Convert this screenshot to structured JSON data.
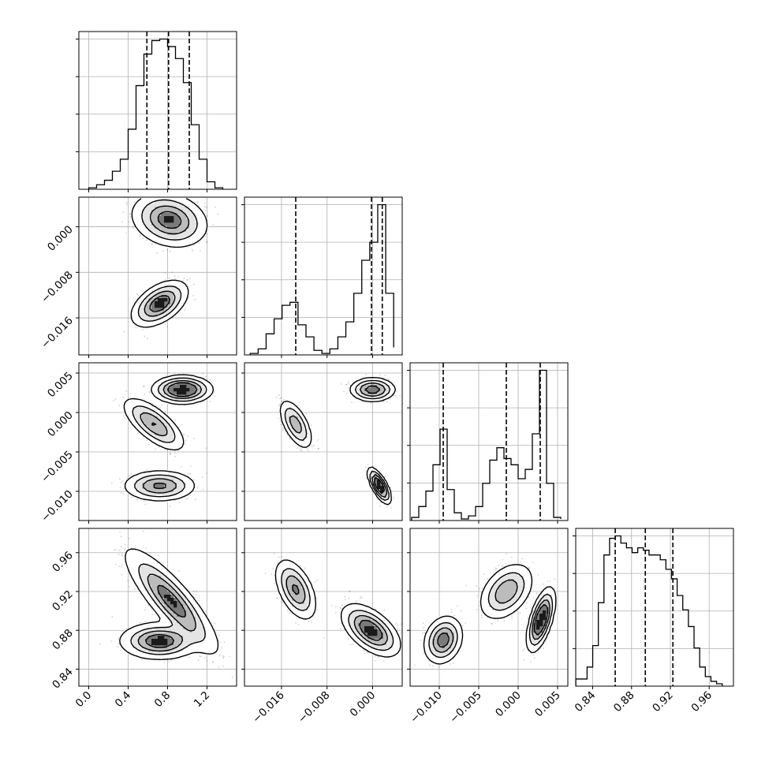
{
  "chart_data": {
    "type": "corner",
    "description_visible": false,
    "parameters": 4,
    "grid": true,
    "quantile_lines": "dashed",
    "panels": {
      "p1": {
        "xlim": [
          -0.1,
          1.5
        ],
        "ticks": [
          0.0,
          0.4,
          0.8,
          1.2
        ],
        "tick_labels": [
          "0.0",
          "0.4",
          "0.8",
          "1.2"
        ],
        "quantiles": [
          0.59,
          0.81,
          1.02
        ],
        "hist_edges": [
          0.0,
          0.08,
          0.16,
          0.24,
          0.32,
          0.4,
          0.48,
          0.56,
          0.64,
          0.72,
          0.8,
          0.88,
          0.96,
          1.04,
          1.12,
          1.2,
          1.28,
          1.36
        ],
        "hist_counts": [
          1,
          3,
          6,
          12,
          20,
          40,
          69,
          90,
          99,
          100,
          95,
          87,
          71,
          43,
          20,
          5,
          1
        ]
      },
      "p2": {
        "lim": [
          -0.0225,
          0.0052
        ],
        "ticks": [
          -0.016,
          -0.008,
          0.0
        ],
        "tick_labels": [
          "−0.016",
          "−0.008",
          "0.000"
        ],
        "quantiles": [
          -0.0135,
          -0.0002,
          0.0017
        ],
        "hist_edges": [
          -0.0215,
          -0.0201,
          -0.0187,
          -0.0173,
          -0.0159,
          -0.0145,
          -0.0131,
          -0.0117,
          -0.0103,
          -0.0089,
          -0.0075,
          -0.0061,
          -0.0047,
          -0.0033,
          -0.0019,
          -0.0005,
          0.0009,
          0.0023,
          0.0037
        ],
        "hist_counts": [
          1,
          4,
          14,
          24,
          33,
          35,
          20,
          12,
          3,
          1,
          4,
          12,
          22,
          41,
          63,
          75,
          100,
          41,
          5
        ]
      },
      "p3": {
        "lim": [
          -0.0137,
          0.0063
        ],
        "ticks": [
          -0.01,
          -0.005,
          0.0,
          0.005
        ],
        "tick_labels": [
          "−0.010",
          "−0.005",
          "0.000",
          "0.005"
        ],
        "quantiles": [
          -0.0095,
          -0.0015,
          0.0028
        ],
        "hist_edges": [
          -0.0135,
          -0.0126,
          -0.0117,
          -0.0108,
          -0.0099,
          -0.009,
          -0.0081,
          -0.0072,
          -0.0063,
          -0.0054,
          -0.0045,
          -0.0036,
          -0.0027,
          -0.0018,
          -0.0009,
          0.0,
          0.0009,
          0.0018,
          0.0027,
          0.0036,
          0.0045,
          0.0054
        ],
        "hist_counts": [
          2,
          9,
          19,
          36,
          59,
          20,
          5,
          1,
          3,
          9,
          24,
          39,
          47,
          40,
          36,
          27,
          33,
          56,
          97,
          24,
          2,
          1
        ]
      },
      "p4": {
        "lim": [
          0.8225,
          0.985
        ],
        "ticks": [
          0.84,
          0.88,
          0.92,
          0.96
        ],
        "tick_labels": [
          "0.84",
          "0.88",
          "0.92",
          "0.96"
        ],
        "quantiles": [
          0.8632,
          0.8942,
          0.9226
        ],
        "hist_edges": [
          0.8226,
          0.8284,
          0.8342,
          0.84,
          0.8458,
          0.8516,
          0.8574,
          0.8632,
          0.869,
          0.8748,
          0.8806,
          0.8864,
          0.8922,
          0.898,
          0.9038,
          0.9096,
          0.9154,
          0.9212,
          0.927,
          0.9328,
          0.9386,
          0.9444,
          0.9502,
          0.956,
          0.9618,
          0.9676,
          0.9734
        ],
        "hist_counts": [
          3,
          3,
          8,
          17,
          35,
          55,
          62,
          63,
          60,
          58,
          56,
          58,
          57,
          55,
          55,
          53,
          49,
          45,
          38,
          32,
          25,
          16,
          8,
          4,
          2,
          1
        ]
      }
    },
    "modes": {
      "p1_p2": [
        {
          "mx": 0.82,
          "my": 0.0012,
          "sx": 0.16,
          "sy": 0.002,
          "rho": -0.2,
          "w": 0.62
        },
        {
          "mx": 0.72,
          "my": -0.0135,
          "sx": 0.12,
          "sy": 0.0017,
          "rho": 0.5,
          "w": 0.38
        }
      ],
      "p1_p3": [
        {
          "mx": 0.95,
          "my": 0.0029,
          "sx": 0.12,
          "sy": 0.0007,
          "rho": 0.0,
          "w": 0.4
        },
        {
          "mx": 0.66,
          "my": -0.0015,
          "sx": 0.13,
          "sy": 0.0014,
          "rho": -0.7,
          "w": 0.3
        },
        {
          "mx": 0.72,
          "my": -0.0093,
          "sx": 0.15,
          "sy": 0.0008,
          "rho": 0.0,
          "w": 0.3
        }
      ],
      "p2_p3": [
        {
          "mx": 0.0,
          "my": 0.0029,
          "sx": 0.0016,
          "sy": 0.0006,
          "rho": 0.0,
          "w": 0.4
        },
        {
          "mx": -0.0135,
          "my": -0.0015,
          "sx": 0.0012,
          "sy": 0.0013,
          "rho": -0.6,
          "w": 0.3
        },
        {
          "mx": 0.0012,
          "my": -0.0093,
          "sx": 0.0008,
          "sy": 0.0009,
          "rho": -0.7,
          "w": 0.3
        }
      ],
      "p1_p4": [
        {
          "mx": 0.84,
          "my": 0.91,
          "sx": 0.2,
          "sy": 0.023,
          "rho": -0.85,
          "w": 0.62
        },
        {
          "mx": 0.72,
          "my": 0.869,
          "sx": 0.17,
          "sy": 0.008,
          "rho": 0.0,
          "w": 0.38
        }
      ],
      "p2_p4": [
        {
          "mx": -0.0135,
          "my": 0.922,
          "sx": 0.0015,
          "sy": 0.013,
          "rho": -0.5,
          "w": 0.38
        },
        {
          "mx": -0.0003,
          "my": 0.88,
          "sx": 0.0021,
          "sy": 0.011,
          "rho": -0.55,
          "w": 0.62
        }
      ],
      "p3_p4": [
        {
          "mx": -0.0095,
          "my": 0.87,
          "sx": 0.001,
          "sy": 0.01,
          "rho": 0.2,
          "w": 0.3
        },
        {
          "mx": -0.0015,
          "my": 0.92,
          "sx": 0.0014,
          "sy": 0.012,
          "rho": 0.4,
          "w": 0.35
        },
        {
          "mx": 0.0029,
          "my": 0.891,
          "sx": 0.0007,
          "sy": 0.013,
          "rho": 0.6,
          "w": 0.35
        }
      ]
    }
  }
}
